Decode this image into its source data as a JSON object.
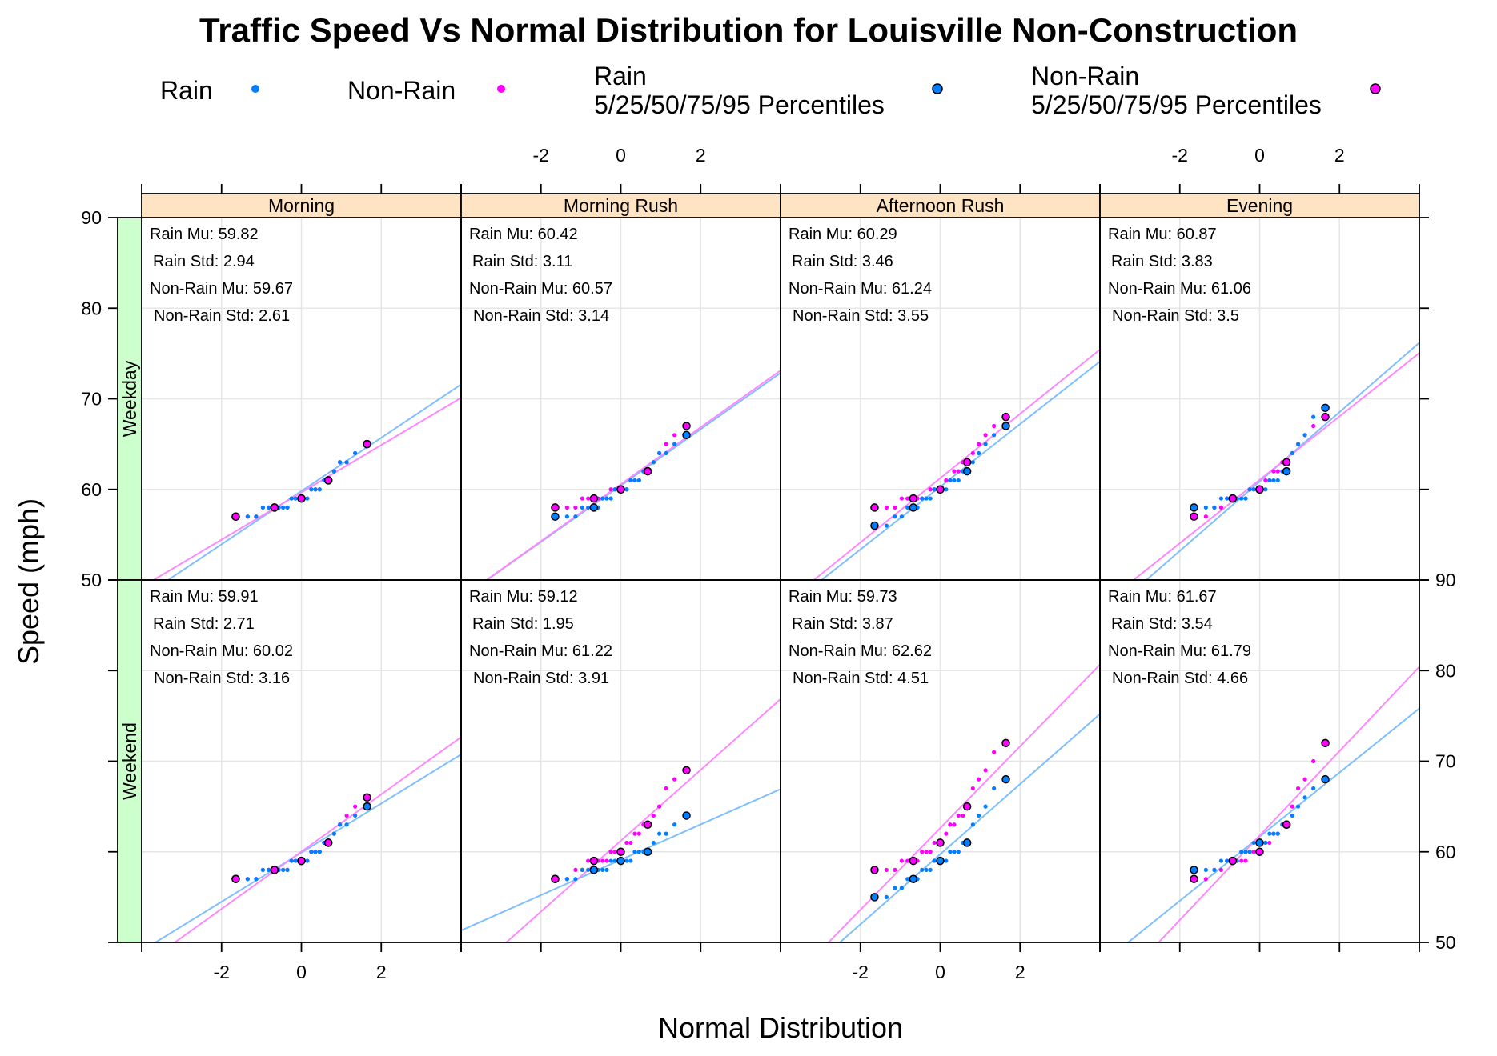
{
  "chart_data": {
    "type": "scatter",
    "title": "Traffic Speed Vs Normal Distribution for Louisville Non-Construction",
    "xlabel": "Normal Distribution",
    "ylabel": "Speed (mph)",
    "xlim": [
      -4,
      4
    ],
    "ylim": [
      50,
      90
    ],
    "x_ticks": [
      -2,
      0,
      2
    ],
    "y_ticks": [
      50,
      60,
      70,
      80,
      90
    ],
    "grid": true,
    "legend_position": "top",
    "legend": [
      {
        "label": "Rain",
        "style": "dot",
        "color": "#0080ff"
      },
      {
        "label": "Non-Rain",
        "style": "dot",
        "color": "#ff00ff"
      },
      {
        "label": "Rain",
        "label2": "5/25/50/75/95 Percentiles",
        "style": "circle",
        "color": "#0080ff"
      },
      {
        "label": "Non-Rain",
        "label2": "5/25/50/75/95 Percentiles",
        "style": "circle",
        "color": "#ff00ff"
      }
    ],
    "colors": {
      "rain": "#0080ff",
      "nonrain": "#ff00ff",
      "rain_line": "#7fbfff",
      "nonrain_line": "#ff88ff",
      "strip_top": "#ffe4c4",
      "strip_side": "#ccffcc",
      "grid": "#e6e6e6"
    },
    "columns": [
      "Morning",
      "Morning Rush",
      "Afternoon Rush",
      "Evening"
    ],
    "rows": [
      "Weekday",
      "Weekend"
    ],
    "stat_labels": {
      "rain_mu": "Rain Mu: ",
      "rain_std": "Rain Std: ",
      "nonrain_mu": "Non-Rain Mu: ",
      "nonrain_std": "Non-Rain Std: "
    },
    "panels": [
      {
        "row": "Weekday",
        "column": "Morning",
        "stats_text": {
          "rain_mu": "59.82",
          "rain_std": "2.94",
          "nonrain_mu": "59.67",
          "nonrain_std": "2.61"
        },
        "rain": {
          "mu": 59.82,
          "sd": 2.94,
          "percentiles": [
            57,
            58,
            59,
            61,
            65
          ]
        },
        "nonrain": {
          "mu": 59.67,
          "sd": 2.61,
          "percentiles": [
            57,
            58,
            59,
            61,
            65
          ]
        }
      },
      {
        "row": "Weekday",
        "column": "Morning Rush",
        "stats_text": {
          "rain_mu": "60.42",
          "rain_std": "3.11",
          "nonrain_mu": "60.57",
          "nonrain_std": "3.14"
        },
        "rain": {
          "mu": 60.42,
          "sd": 3.11,
          "percentiles": [
            57,
            58,
            60,
            62,
            66
          ]
        },
        "nonrain": {
          "mu": 60.57,
          "sd": 3.14,
          "percentiles": [
            58,
            59,
            60,
            62,
            67
          ]
        }
      },
      {
        "row": "Weekday",
        "column": "Afternoon Rush",
        "stats_text": {
          "rain_mu": "60.29",
          "rain_std": "3.46",
          "nonrain_mu": "61.24",
          "nonrain_std": "3.55"
        },
        "rain": {
          "mu": 60.29,
          "sd": 3.46,
          "percentiles": [
            56,
            58,
            60,
            62,
            67
          ]
        },
        "nonrain": {
          "mu": 61.24,
          "sd": 3.55,
          "percentiles": [
            58,
            59,
            60,
            63,
            68
          ]
        }
      },
      {
        "row": "Weekday",
        "column": "Evening",
        "stats_text": {
          "rain_mu": "60.87",
          "rain_std": "3.83",
          "nonrain_mu": "61.06",
          "nonrain_std": "3.5"
        },
        "rain": {
          "mu": 60.87,
          "sd": 3.83,
          "percentiles": [
            58,
            59,
            60,
            62,
            69
          ]
        },
        "nonrain": {
          "mu": 61.06,
          "sd": 3.5,
          "percentiles": [
            57,
            59,
            60,
            63,
            68
          ]
        }
      },
      {
        "row": "Weekend",
        "column": "Morning",
        "stats_text": {
          "rain_mu": "59.91",
          "rain_std": "2.71",
          "nonrain_mu": "60.02",
          "nonrain_std": "3.16"
        },
        "rain": {
          "mu": 59.91,
          "sd": 2.71,
          "percentiles": [
            57,
            58,
            59,
            61,
            65
          ]
        },
        "nonrain": {
          "mu": 60.02,
          "sd": 3.16,
          "percentiles": [
            57,
            58,
            59,
            61,
            66
          ]
        }
      },
      {
        "row": "Weekend",
        "column": "Morning Rush",
        "stats_text": {
          "rain_mu": "59.12",
          "rain_std": "1.95",
          "nonrain_mu": "61.22",
          "nonrain_std": "3.91"
        },
        "rain": {
          "mu": 59.12,
          "sd": 1.95,
          "percentiles": [
            57,
            58,
            59,
            60,
            64
          ]
        },
        "nonrain": {
          "mu": 61.22,
          "sd": 3.91,
          "percentiles": [
            57,
            59,
            60,
            63,
            69
          ]
        }
      },
      {
        "row": "Weekend",
        "column": "Afternoon Rush",
        "stats_text": {
          "rain_mu": "59.73",
          "rain_std": "3.87",
          "nonrain_mu": "62.62",
          "nonrain_std": "4.51"
        },
        "rain": {
          "mu": 59.73,
          "sd": 3.87,
          "percentiles": [
            55,
            57,
            59,
            61,
            68
          ]
        },
        "nonrain": {
          "mu": 62.62,
          "sd": 4.51,
          "percentiles": [
            58,
            59,
            61,
            65,
            72
          ]
        }
      },
      {
        "row": "Weekend",
        "column": "Evening",
        "stats_text": {
          "rain_mu": "61.67",
          "rain_std": "3.54",
          "nonrain_mu": "61.79",
          "nonrain_std": "4.66"
        },
        "rain": {
          "mu": 61.67,
          "sd": 3.54,
          "percentiles": [
            58,
            59,
            61,
            63,
            68
          ]
        },
        "nonrain": {
          "mu": 61.79,
          "sd": 4.66,
          "percentiles": [
            57,
            59,
            60,
            63,
            72
          ]
        }
      }
    ]
  }
}
